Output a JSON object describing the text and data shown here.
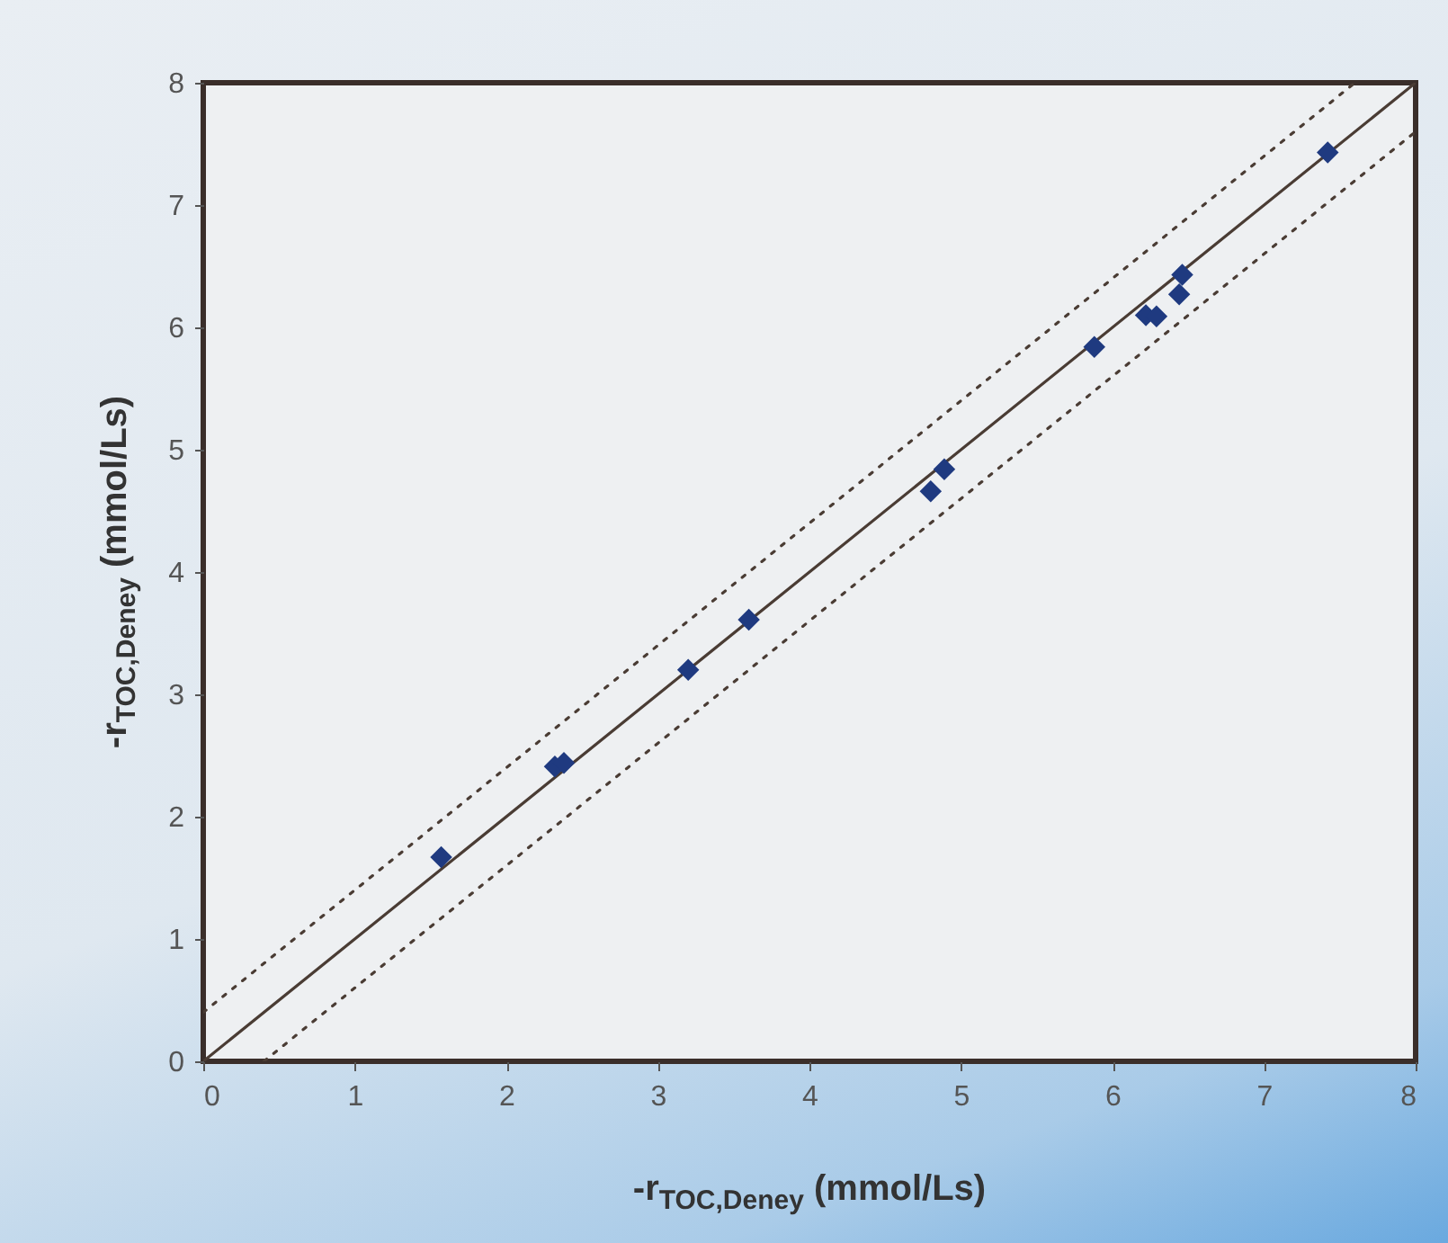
{
  "chart_data": {
    "type": "scatter",
    "xlabel": "-r$_{TOC,Deney}$ (mmol/Ls)",
    "ylabel": "-r$_{TOC,Deney}$ (mmol/Ls)",
    "xlim": [
      0,
      8
    ],
    "ylim": [
      0,
      8
    ],
    "xticks": [
      0,
      1,
      2,
      3,
      4,
      5,
      6,
      7,
      8
    ],
    "yticks": [
      0,
      1,
      2,
      3,
      4,
      5,
      6,
      7,
      8
    ],
    "grid": false,
    "series": [
      {
        "type": "line",
        "line_style": "solid",
        "marker": "none",
        "color": "#4a3c34",
        "x": [
          0,
          8
        ],
        "values": [
          0,
          8
        ]
      },
      {
        "type": "line",
        "line_style": "dotted",
        "marker": "none",
        "color": "#4a3c34",
        "x": [
          0,
          7.6
        ],
        "values": [
          0.4,
          8
        ]
      },
      {
        "type": "line",
        "line_style": "dotted",
        "marker": "none",
        "color": "#4a3c34",
        "x": [
          0.4,
          8
        ],
        "values": [
          0,
          7.6
        ]
      },
      {
        "type": "scatter",
        "marker": "diamond",
        "color": "#1f3a80",
        "x": [
          1.57,
          2.32,
          2.38,
          3.2,
          3.6,
          4.8,
          4.89,
          5.88,
          6.22,
          6.29,
          6.44,
          6.46,
          7.42
        ],
        "values": [
          1.67,
          2.41,
          2.44,
          3.2,
          3.61,
          4.66,
          4.84,
          5.84,
          6.1,
          6.09,
          6.27,
          6.43,
          7.43
        ]
      }
    ]
  }
}
